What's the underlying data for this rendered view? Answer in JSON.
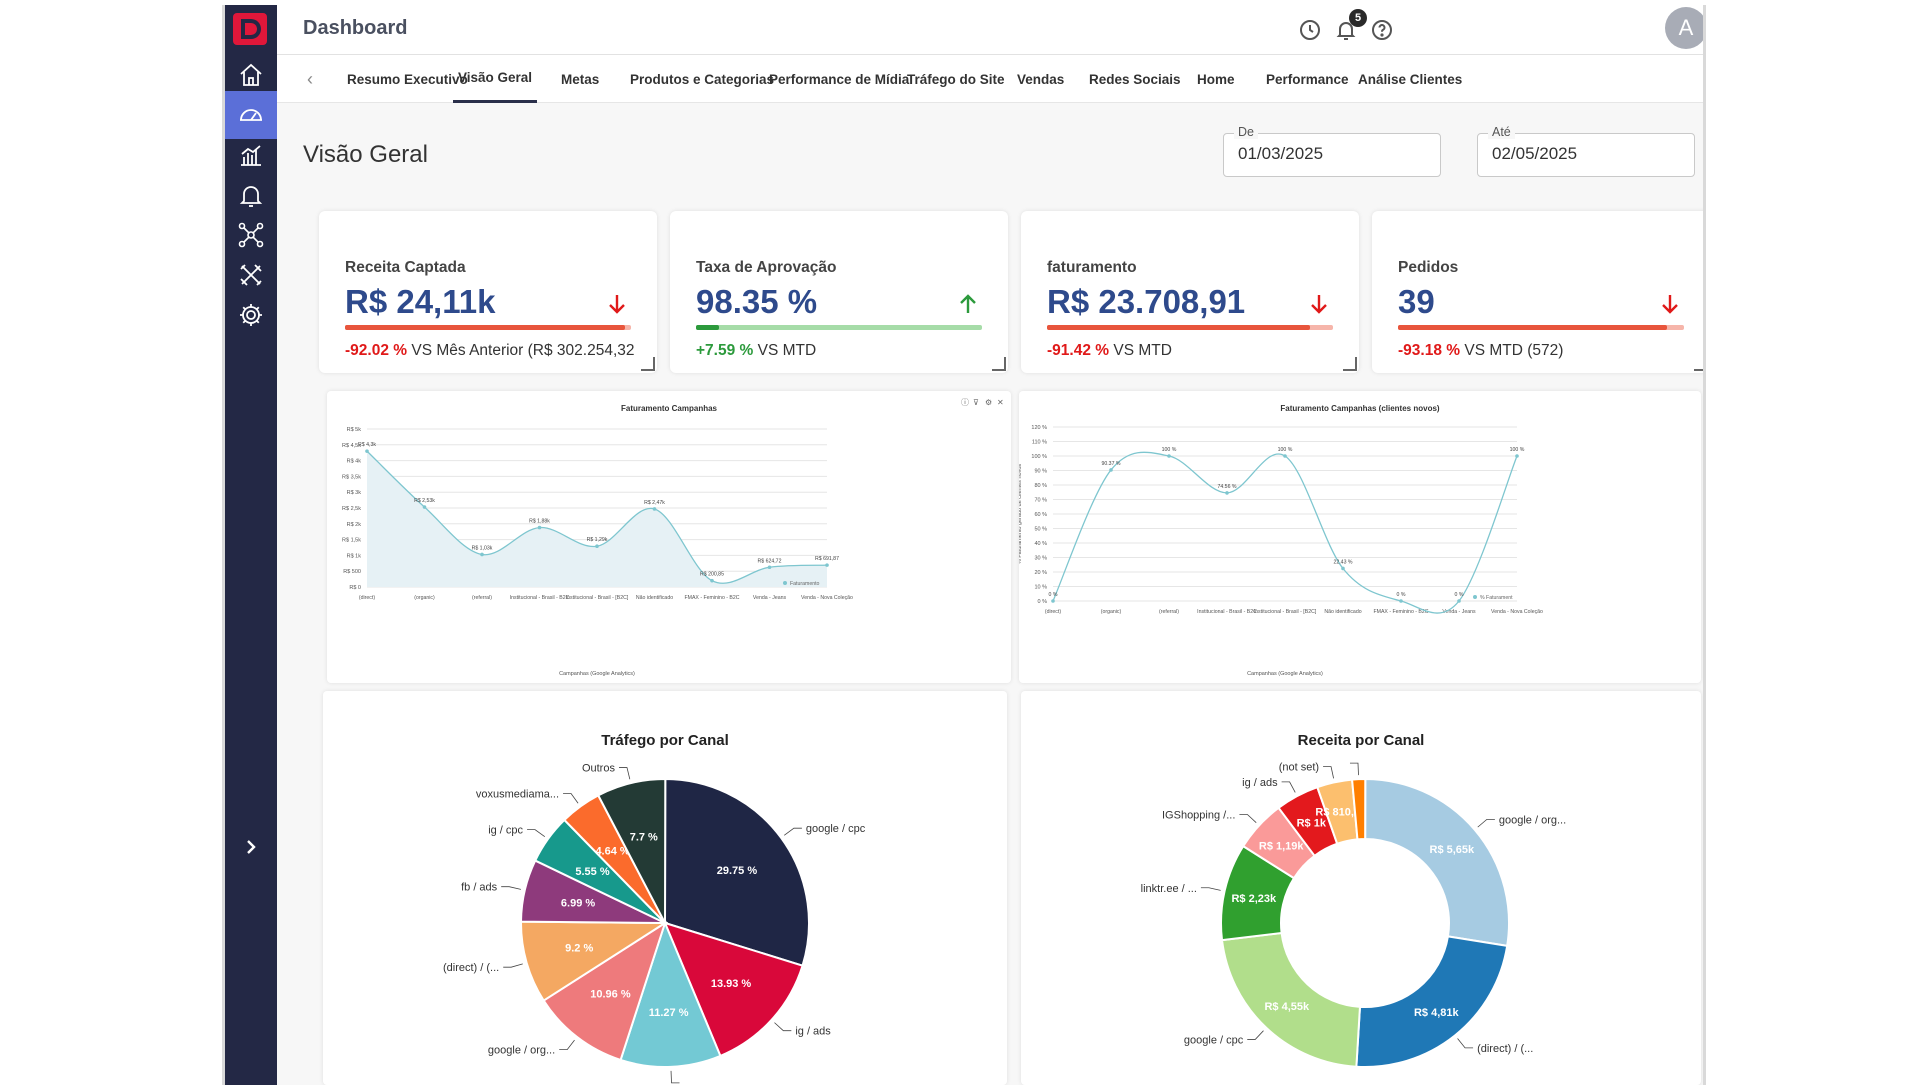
{
  "app": {
    "title": "Dashboard",
    "notifications_count": "5",
    "avatar_letter": "A"
  },
  "colors": {
    "sidebar": "#232845",
    "accent": "#5b6fd8",
    "value_blue": "#2e4a8c",
    "negative": "#e01919",
    "positive": "#2c9a3c"
  },
  "sidebar": {
    "items": [
      {
        "icon": "home-icon"
      },
      {
        "icon": "gauge-icon",
        "active": true
      },
      {
        "icon": "bar-chart-icon"
      },
      {
        "icon": "bell-icon"
      },
      {
        "icon": "network-icon"
      },
      {
        "icon": "tools-icon"
      },
      {
        "icon": "gear-icon"
      }
    ],
    "expand_icon": "chevron-right-icon"
  },
  "tabs": [
    {
      "label": "Resumo Executivo"
    },
    {
      "label": "Visão Geral",
      "active": true
    },
    {
      "label": "Metas"
    },
    {
      "label": "Produtos e Categorias"
    },
    {
      "label": "Performance de Mídia"
    },
    {
      "label": "Tráfego do Site"
    },
    {
      "label": "Vendas"
    },
    {
      "label": "Redes Sociais"
    },
    {
      "label": "Home"
    },
    {
      "label": "Performance"
    },
    {
      "label": "Análise Clientes"
    }
  ],
  "page": {
    "title": "Visão Geral"
  },
  "date_range": {
    "from_label": "De",
    "from_value": "01/03/2025",
    "to_label": "Até",
    "to_value": "02/05/2025"
  },
  "kpis": [
    {
      "title": "Receita Captada",
      "value": "R$ 24,11k",
      "direction": "down",
      "progress": 0.98,
      "delta": "-92.02 %",
      "delta_suffix": " VS Mês Anterior (R$ 302.254,32"
    },
    {
      "title": "Taxa de Aprovação",
      "value": "98.35 %",
      "direction": "up",
      "progress": 0.08,
      "delta": "+7.59 %",
      "delta_suffix": " VS MTD"
    },
    {
      "title": "faturamento",
      "value": "R$ 23.708,91",
      "direction": "down",
      "progress": 0.92,
      "delta": "-91.42 %",
      "delta_suffix": " VS MTD"
    },
    {
      "title": "Pedidos",
      "value": "39",
      "direction": "down",
      "progress": 0.94,
      "delta": "-93.18 %",
      "delta_suffix": " VS MTD (572)"
    }
  ],
  "chart_data": [
    {
      "type": "line",
      "title": "Faturamento Campanhas",
      "xlabel": "Campanhas (Google Analytics)",
      "ylabel": "",
      "categories": [
        "(direct)",
        "(organic)",
        "(referral)",
        "Institucional - Brasil - B2C",
        "Institucional - Brasil - [B2C]",
        "Não identificado",
        "FMAX - Feminino - B2C",
        "Venda - Jeans",
        "Venda - Nova Coleção"
      ],
      "y_ticks": [
        "R$ 0",
        "R$ 500",
        "R$ 1k",
        "R$ 1,5k",
        "R$ 2k",
        "R$ 2,5k",
        "R$ 3k",
        "R$ 3,5k",
        "R$ 4k",
        "R$ 4,5k",
        "R$ 5k"
      ],
      "ylim": [
        0,
        5000
      ],
      "values": [
        4300,
        2530,
        1030,
        1880,
        1290,
        2470,
        200.85,
        624.72,
        691.87
      ],
      "labels": [
        "R$ 4,3k",
        "R$ 2,53k",
        "R$ 1,03k",
        "R$ 1,88k",
        "R$ 1,29k",
        "R$ 2,47k",
        "R$ 200,85",
        "R$ 624,72",
        "R$ 691,87"
      ],
      "legend": "Faturamento",
      "legend_position": "bottom-right",
      "grid": true,
      "toolbar_icons": [
        "info-icon",
        "filter-icon",
        "gear-icon",
        "close-icon"
      ]
    },
    {
      "type": "line",
      "title": "Faturamento Campanhas (clientes novos)",
      "xlabel": "Campanhas (Google Analytics)",
      "ylabel": "% Faturamento gerado de clientes novos",
      "categories": [
        "(direct)",
        "(organic)",
        "(referral)",
        "Institucional - Brasil - B2C",
        "Institucional - Brasil - [B2C]",
        "Não identificado",
        "FMAX - Feminino - B2C",
        "Venda - Jeans",
        "Venda - Nova Coleção"
      ],
      "y_ticks": [
        "0 %",
        "10 %",
        "20 %",
        "30 %",
        "40 %",
        "50 %",
        "60 %",
        "70 %",
        "80 %",
        "90 %",
        "100 %",
        "110 %",
        "120 %"
      ],
      "ylim": [
        0,
        120
      ],
      "values": [
        0,
        90.37,
        100,
        74.56,
        100,
        22.43,
        0,
        0,
        100
      ],
      "labels": [
        "0 %",
        "90.37 %",
        "100 %",
        "74.56 %",
        "100 %",
        "22.43 %",
        "0 %",
        "0 %",
        "100 %"
      ],
      "legend": "% Faturament",
      "legend_position": "bottom-right",
      "grid": true
    },
    {
      "type": "pie",
      "title": "Tráfego por Canal",
      "slices": [
        {
          "name": "google / cpc",
          "value": 29.75,
          "label": "29.75 %",
          "color": "#1f2645"
        },
        {
          "name": "ig / ads",
          "value": 13.93,
          "label": "13.93 %",
          "color": "#d9083a"
        },
        {
          "name": "",
          "value": 11.27,
          "label": "11.27 %",
          "color": "#73c9d4"
        },
        {
          "name": "google / org...",
          "value": 10.96,
          "label": "10.96 %",
          "color": "#ee7a7c"
        },
        {
          "name": "(direct) / (...",
          "value": 9.2,
          "label": "9.2 %",
          "color": "#f4a862"
        },
        {
          "name": "fb / ads",
          "value": 6.99,
          "label": "6.99 %",
          "color": "#8e3a7c"
        },
        {
          "name": "ig / cpc",
          "value": 5.55,
          "label": "5.55 %",
          "color": "#17998c"
        },
        {
          "name": "voxusmediama...",
          "value": 4.64,
          "label": "4.64 %",
          "color": "#fb6b2c"
        },
        {
          "name": "Outros",
          "value": 7.7,
          "label": "7.7 %",
          "color": "#233a35"
        }
      ]
    },
    {
      "type": "pie",
      "subtype": "donut",
      "title": "Receita por Canal",
      "slices": [
        {
          "name": "google / org...",
          "value": 5650,
          "label": "R$ 5,65k",
          "color": "#a6cbe2"
        },
        {
          "name": "(direct) / (...",
          "value": 4810,
          "label": "R$ 4,81k",
          "color": "#1f78b6"
        },
        {
          "name": "google / cpc",
          "value": 4550,
          "label": "R$ 4,55k",
          "color": "#b1de8b"
        },
        {
          "name": "linktr.ee / ...",
          "value": 2230,
          "label": "R$ 2,23k",
          "color": "#30a02f"
        },
        {
          "name": "IGShopping /...",
          "value": 1190,
          "label": "R$ 1,19k",
          "color": "#fa9a99"
        },
        {
          "name": "ig / ads",
          "value": 1000,
          "label": "R$ 1k",
          "color": "#e3191d"
        },
        {
          "name": "(not set)",
          "value": 810.73,
          "label": "R$ 810,73",
          "color": "#fcbf6e"
        },
        {
          "name": "",
          "value": 300,
          "label": "",
          "color": "#ff7f00"
        }
      ]
    }
  ]
}
